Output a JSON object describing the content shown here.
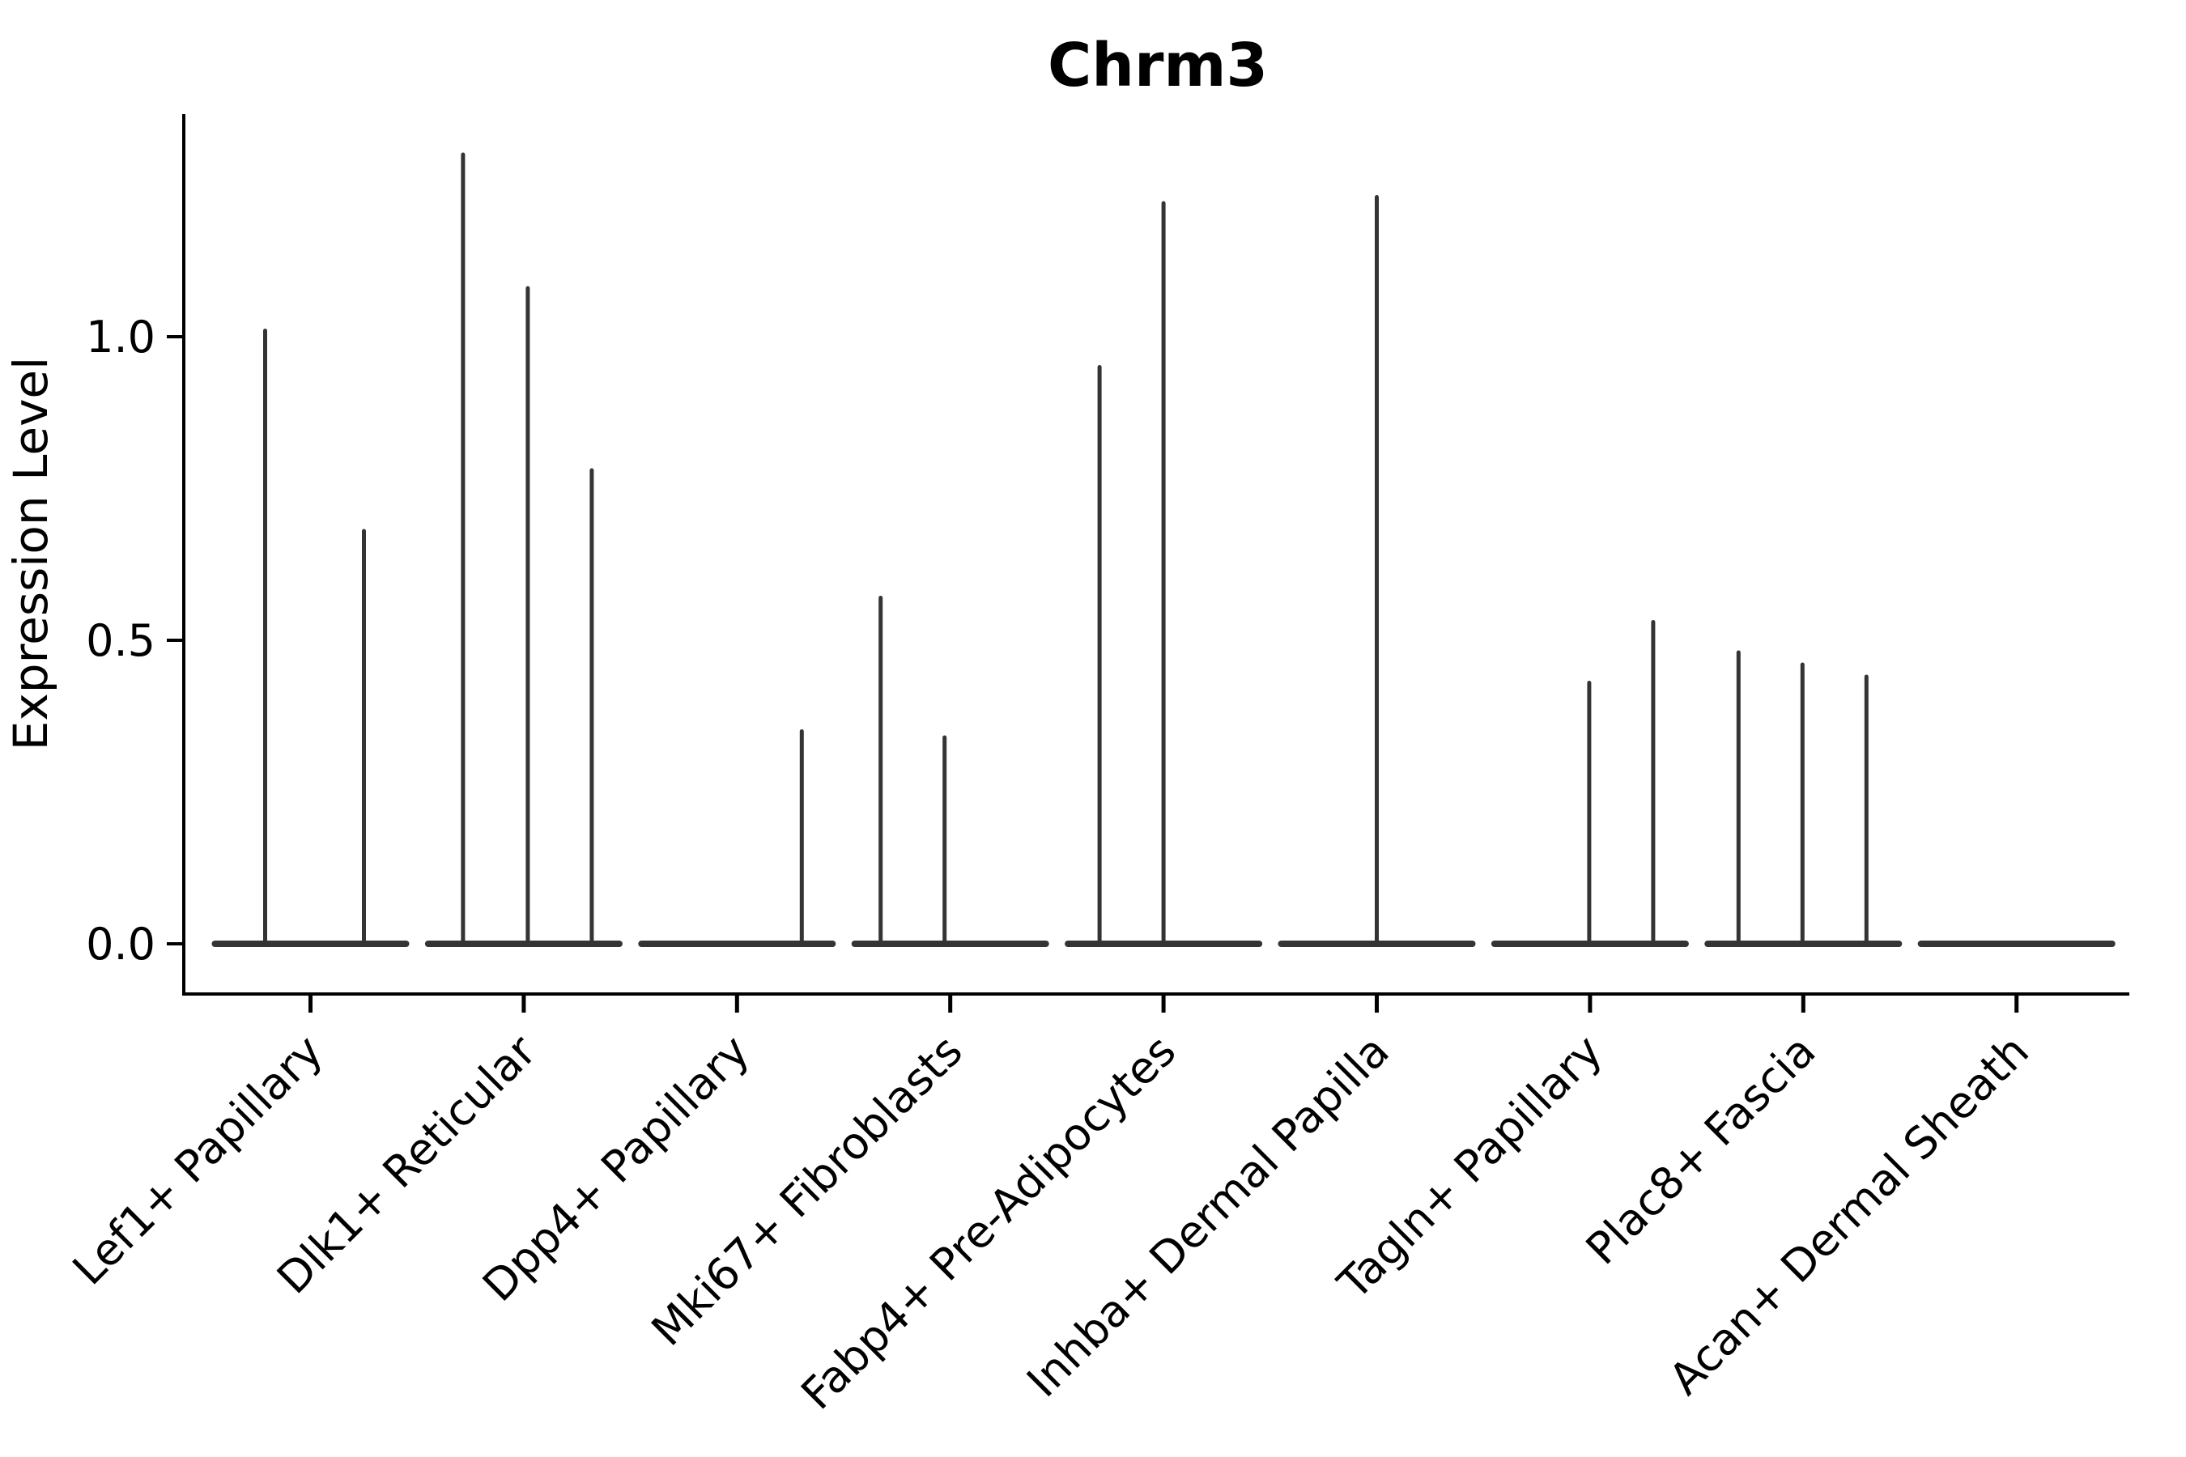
{
  "chart_data": {
    "type": "violin",
    "title": "Chrm3",
    "xlabel": "",
    "ylabel": "Expression Level",
    "ytick_labels": [
      "0.0",
      "0.5",
      "1.0"
    ],
    "ytick_values": [
      0.0,
      0.5,
      1.0
    ],
    "ylim": [
      -0.083,
      1.367
    ],
    "grid": false,
    "legend": "none",
    "description": "Sparse single-cell expression violin plot; each cell-type group shows flat zero-level violin bases with thin needle-like peaks reaching the listed max expression values.",
    "categories": [
      {
        "label": "Lef1+ Papillary",
        "violins": [
          {
            "offset": -56,
            "max": 1.01
          },
          {
            "offset": 66,
            "max": 0.68
          }
        ]
      },
      {
        "label": "Dlk1+ Reticular",
        "violins": [
          {
            "offset": -75,
            "max": 1.3
          },
          {
            "offset": 5,
            "max": 1.08
          },
          {
            "offset": 84,
            "max": 0.78
          }
        ]
      },
      {
        "label": "Dpp4+ Papillary",
        "violins": [
          {
            "offset": 80,
            "max": 0.35
          }
        ]
      },
      {
        "label": "Mki67+ Fibroblasts",
        "violins": [
          {
            "offset": -86,
            "max": 0.57
          },
          {
            "offset": -7,
            "max": 0.34
          }
        ]
      },
      {
        "label": "Fabp4+ Pre-Adipocytes",
        "violins": [
          {
            "offset": -79,
            "max": 0.95
          },
          {
            "offset": 0,
            "max": 1.22
          }
        ]
      },
      {
        "label": "Inhba+ Dermal Papilla",
        "violins": [
          {
            "offset": 0,
            "max": 1.23
          }
        ]
      },
      {
        "label": "Tagln+ Papillary",
        "violins": [
          {
            "offset": -1,
            "max": 0.43
          },
          {
            "offset": 78,
            "max": 0.53
          }
        ]
      },
      {
        "label": "Plac8+ Fascia",
        "violins": [
          {
            "offset": -80,
            "max": 0.48
          },
          {
            "offset": -1,
            "max": 0.46
          },
          {
            "offset": 78,
            "max": 0.44
          }
        ]
      },
      {
        "label": "Acan+ Dermal Sheath",
        "violins": []
      }
    ],
    "colors": {
      "violin": "#343434",
      "axis": "#000000",
      "text": "#000000",
      "background": "#ffffff"
    }
  }
}
